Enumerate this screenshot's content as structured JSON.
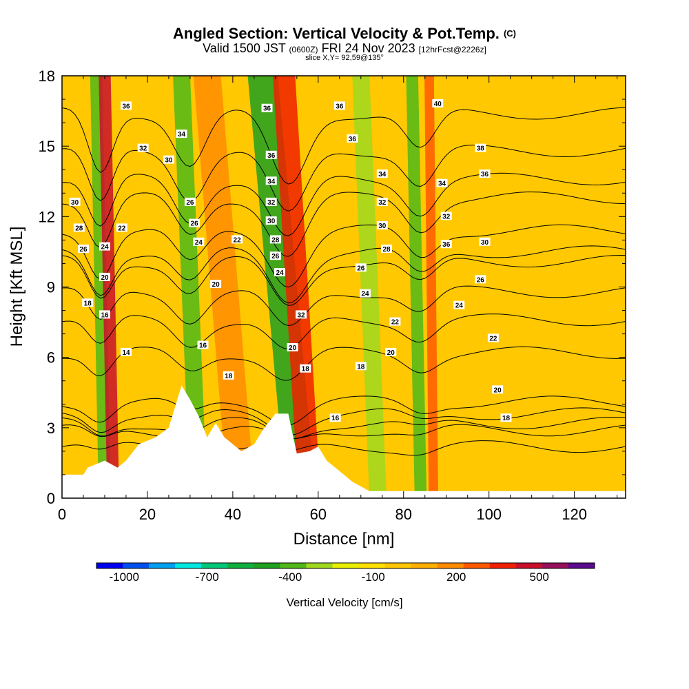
{
  "header": {
    "title": "Angled Section: Vertical Velocity & Pot.Temp.",
    "title_tag": "(C)",
    "subtitle_a": "Valid 1500 JST",
    "subtitle_b": "(0600Z)",
    "subtitle_c": "FRI 24 Nov 2023",
    "subtitle_d": "[12hrFcst@2226z]",
    "slice": "slice X,Y= 92,59@135°"
  },
  "chart_data": {
    "type": "heatmap",
    "xlabel": "Distance [nm]",
    "ylabel": "Height [Kft MSL]",
    "xlim": [
      0,
      132
    ],
    "ylim": [
      0,
      18
    ],
    "x_ticks": [
      0,
      20,
      40,
      60,
      80,
      100,
      120
    ],
    "y_ticks": [
      0,
      3,
      6,
      9,
      12,
      15,
      18
    ],
    "colorbar": {
      "label": "Vertical Velocity [cm/s]",
      "tick_labels": [
        "-1000",
        "-700",
        "-400",
        "-100",
        "200",
        "500"
      ],
      "tick_values": [
        -1000,
        -700,
        -400,
        -100,
        200,
        500
      ],
      "bins": [
        -1100,
        -1000,
        -900,
        -800,
        -700,
        -600,
        -500,
        -400,
        -300,
        -200,
        -100,
        0,
        100,
        200,
        300,
        400,
        500,
        600,
        700
      ],
      "colors": [
        "#0000f0",
        "#0050f0",
        "#00a0f0",
        "#00e8e0",
        "#00c878",
        "#10b040",
        "#20a020",
        "#50b818",
        "#a0d820",
        "#e8f000",
        "#ffe000",
        "#ffc800",
        "#ffb000",
        "#ff8c00",
        "#ff5a00",
        "#f02000",
        "#c8102a",
        "#96105a",
        "#5a0a8c"
      ]
    },
    "velocity_bands": [
      {
        "x_top": 8,
        "x_bottom": 10,
        "value": -350
      },
      {
        "x_top": 10,
        "x_bottom": 12,
        "value": 500
      },
      {
        "x_top": 28,
        "x_bottom": 32,
        "value": -350
      },
      {
        "x_top": 34,
        "x_bottom": 42,
        "value": 200
      },
      {
        "x_top": 47,
        "x_bottom": 56,
        "value": -450
      },
      {
        "x_top": 52,
        "x_bottom": 58,
        "value": 450
      },
      {
        "x_top": 70,
        "x_bottom": 74,
        "value": -250
      },
      {
        "x_top": 82,
        "x_bottom": 84,
        "value": -400
      },
      {
        "x_top": 86,
        "x_bottom": 87,
        "value": 300
      }
    ],
    "terrain": [
      {
        "x": 0,
        "y": 1.0
      },
      {
        "x": 5,
        "y": 1.0
      },
      {
        "x": 6,
        "y": 1.3
      },
      {
        "x": 10,
        "y": 1.6
      },
      {
        "x": 13,
        "y": 1.3
      },
      {
        "x": 15,
        "y": 1.6
      },
      {
        "x": 18,
        "y": 2.3
      },
      {
        "x": 22,
        "y": 2.6
      },
      {
        "x": 25,
        "y": 3.0
      },
      {
        "x": 28,
        "y": 4.8
      },
      {
        "x": 30,
        "y": 4.2
      },
      {
        "x": 32,
        "y": 3.5
      },
      {
        "x": 34,
        "y": 2.6
      },
      {
        "x": 36,
        "y": 3.2
      },
      {
        "x": 38,
        "y": 2.6
      },
      {
        "x": 42,
        "y": 2.0
      },
      {
        "x": 45,
        "y": 2.3
      },
      {
        "x": 47,
        "y": 2.9
      },
      {
        "x": 50,
        "y": 3.6
      },
      {
        "x": 53,
        "y": 3.6
      },
      {
        "x": 55,
        "y": 1.9
      },
      {
        "x": 58,
        "y": 2.0
      },
      {
        "x": 60,
        "y": 2.2
      },
      {
        "x": 62,
        "y": 1.6
      },
      {
        "x": 66,
        "y": 1.0
      },
      {
        "x": 68,
        "y": 0.7
      },
      {
        "x": 72,
        "y": 0.3
      },
      {
        "x": 132,
        "y": 0.3
      }
    ],
    "isentropes": [
      {
        "label": "14",
        "y0": 2.2,
        "lx": 15,
        "ly": 6.2
      },
      {
        "label": "16",
        "y0": 2.9,
        "lx": 33,
        "ly": 6.5
      },
      {
        "label": "16",
        "y0": 3.2,
        "lx": 64,
        "ly": 3.4
      },
      {
        "label": "18",
        "y0": 3.6,
        "lx": 104,
        "ly": 3.4
      },
      {
        "label": "20",
        "y0": 4.1,
        "lx": 102,
        "ly": 4.6
      },
      {
        "label": "22",
        "y0": 6.2,
        "lx": 101,
        "ly": 6.8
      },
      {
        "label": "24",
        "y0": 7.6,
        "lx": 93,
        "ly": 8.2
      },
      {
        "label": "26",
        "y0": 8.8,
        "lx": 98,
        "ly": 9.3
      },
      {
        "label": "28",
        "y0": 10.1,
        "lx": 76,
        "ly": 10.6
      },
      {
        "label": "30",
        "y0": 10.5,
        "lx": 99,
        "ly": 10.9
      },
      {
        "label": "32",
        "y0": 11.4,
        "lx": 90,
        "ly": 12.0
      },
      {
        "label": "34",
        "y0": 12.8,
        "lx": 89,
        "ly": 13.4
      },
      {
        "label": "36",
        "y0": 13.6,
        "lx": 99,
        "ly": 13.8
      },
      {
        "label": "38",
        "y0": 14.8,
        "lx": 98,
        "ly": 14.9
      },
      {
        "label": "40",
        "y0": 16.4,
        "lx": 88,
        "ly": 16.8
      }
    ],
    "extra_contour_labels": [
      {
        "label": "36",
        "x": 15,
        "y": 16.7
      },
      {
        "label": "32",
        "x": 19,
        "y": 14.9
      },
      {
        "label": "30",
        "x": 25,
        "y": 14.4
      },
      {
        "label": "34",
        "x": 28,
        "y": 15.5
      },
      {
        "label": "30",
        "x": 3,
        "y": 12.6
      },
      {
        "label": "28",
        "x": 4,
        "y": 11.5
      },
      {
        "label": "26",
        "x": 5,
        "y": 10.6
      },
      {
        "label": "24",
        "x": 10,
        "y": 10.7
      },
      {
        "label": "22",
        "x": 14,
        "y": 11.5
      },
      {
        "label": "20",
        "x": 10,
        "y": 9.4
      },
      {
        "label": "18",
        "x": 6,
        "y": 8.3
      },
      {
        "label": "16",
        "x": 10,
        "y": 7.8
      },
      {
        "label": "26",
        "x": 30,
        "y": 12.6
      },
      {
        "label": "26",
        "x": 31,
        "y": 11.7
      },
      {
        "label": "24",
        "x": 32,
        "y": 10.9
      },
      {
        "label": "22",
        "x": 41,
        "y": 11.0
      },
      {
        "label": "20",
        "x": 36,
        "y": 9.1
      },
      {
        "label": "18",
        "x": 39,
        "y": 5.2
      },
      {
        "label": "36",
        "x": 48,
        "y": 16.6
      },
      {
        "label": "36",
        "x": 49,
        "y": 14.6
      },
      {
        "label": "34",
        "x": 49,
        "y": 13.5
      },
      {
        "label": "32",
        "x": 49,
        "y": 12.6
      },
      {
        "label": "30",
        "x": 49,
        "y": 11.8
      },
      {
        "label": "28",
        "x": 50,
        "y": 11.0
      },
      {
        "label": "26",
        "x": 50,
        "y": 10.3
      },
      {
        "label": "24",
        "x": 51,
        "y": 9.6
      },
      {
        "label": "32",
        "x": 56,
        "y": 7.8
      },
      {
        "label": "20",
        "x": 54,
        "y": 6.4
      },
      {
        "label": "18",
        "x": 57,
        "y": 5.5
      },
      {
        "label": "36",
        "x": 65,
        "y": 16.7
      },
      {
        "label": "36",
        "x": 68,
        "y": 15.3
      },
      {
        "label": "34",
        "x": 75,
        "y": 13.8
      },
      {
        "label": "32",
        "x": 75,
        "y": 12.6
      },
      {
        "label": "30",
        "x": 75,
        "y": 11.6
      },
      {
        "label": "26",
        "x": 70,
        "y": 9.8
      },
      {
        "label": "24",
        "x": 71,
        "y": 8.7
      },
      {
        "label": "22",
        "x": 78,
        "y": 7.5
      },
      {
        "label": "20",
        "x": 77,
        "y": 6.2
      },
      {
        "label": "18",
        "x": 70,
        "y": 5.6
      },
      {
        "label": "36",
        "x": 90,
        "y": 10.8
      }
    ]
  }
}
